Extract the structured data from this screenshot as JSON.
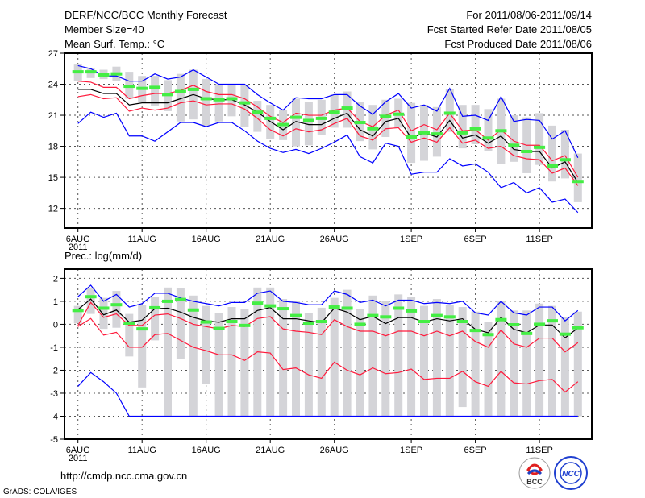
{
  "header": {
    "title": "DERF/NCC/BCC Monthly Forecast",
    "member_size": "Member Size=40",
    "variable": "Mean Surf. Temp.: °C",
    "period": "For 2011/08/06-2011/09/14",
    "start_date": "Fcst Started Refer Date 2011/08/05",
    "produced_date": "Fcst Produced Date 2011/08/06"
  },
  "footer": {
    "url": "http://cmdp.ncc.cma.gov.cn",
    "credit": "GrADS: COLA/IGES",
    "logo_bcc": "BCC",
    "logo_ncc": "NCC"
  },
  "colors": {
    "max_min": "#0000ff",
    "spread": "#ff1a3c",
    "mean": "#000000",
    "obs": "#44ee44",
    "box": "#d4d4d8"
  },
  "chart_data": [
    {
      "type": "line",
      "title": "Mean Surf. Temp.: °C",
      "ylim": [
        10.1,
        27
      ],
      "yticks": [
        12,
        15,
        18,
        21,
        24,
        27
      ],
      "xtick_days": [
        0,
        5,
        10,
        15,
        20,
        26,
        31,
        36
      ],
      "xtick_labels": [
        "6AUG",
        "11AUG",
        "16AUG",
        "21AUG",
        "26AUG",
        "1SEP",
        "6SEP",
        "11SEP"
      ],
      "year_label": "2011",
      "n_days": 40,
      "grid": true,
      "series": [
        {
          "name": "max",
          "color": "#0000ff",
          "values": [
            25.8,
            25.5,
            24.8,
            24.8,
            24.3,
            24.3,
            25.0,
            24.5,
            24.7,
            25.4,
            24.7,
            24.0,
            24.0,
            24.0,
            23.0,
            22.2,
            21.5,
            22.7,
            22.6,
            22.6,
            23.0,
            23.0,
            21.9,
            21.1,
            22.3,
            23.1,
            21.7,
            22.0,
            21.4,
            23.6,
            20.9,
            21.0,
            20.5,
            22.8,
            20.4,
            20.6,
            20.5,
            18.7,
            19.5,
            16.9
          ]
        },
        {
          "name": "upper",
          "color": "#ff1a3c",
          "values": [
            24.3,
            24.2,
            23.7,
            23.7,
            22.6,
            22.9,
            23.1,
            23.1,
            23.4,
            23.9,
            23.3,
            23.0,
            23.0,
            22.6,
            21.8,
            20.9,
            20.3,
            21.2,
            21.0,
            21.0,
            21.5,
            21.7,
            20.4,
            19.9,
            21.0,
            21.5,
            19.5,
            20.1,
            19.6,
            21.2,
            19.5,
            19.6,
            18.6,
            19.6,
            18.5,
            18.1,
            18.1,
            16.6,
            17.1,
            15.0
          ]
        },
        {
          "name": "mean",
          "color": "#000000",
          "values": [
            23.5,
            23.5,
            23.1,
            23.1,
            22.0,
            22.2,
            22.2,
            22.2,
            22.6,
            23.0,
            22.6,
            22.5,
            22.5,
            22.0,
            21.3,
            20.4,
            19.6,
            20.4,
            20.1,
            20.1,
            20.7,
            21.2,
            19.6,
            19.0,
            20.4,
            20.7,
            18.8,
            19.3,
            18.9,
            20.5,
            18.8,
            19.1,
            18.3,
            19.0,
            17.7,
            17.5,
            17.5,
            15.9,
            16.5,
            14.5
          ]
        },
        {
          "name": "lower",
          "color": "#ff1a3c",
          "values": [
            22.8,
            23.0,
            22.6,
            22.7,
            21.4,
            21.7,
            21.5,
            21.7,
            22.2,
            22.4,
            22.0,
            22.1,
            22.1,
            21.6,
            20.7,
            19.6,
            19.0,
            19.7,
            19.4,
            19.6,
            20.2,
            20.7,
            19.0,
            18.6,
            19.7,
            19.8,
            18.4,
            18.8,
            18.4,
            19.8,
            18.3,
            18.6,
            17.8,
            18.0,
            17.1,
            16.8,
            16.7,
            15.4,
            15.9,
            14.2
          ]
        },
        {
          "name": "min",
          "color": "#0000ff",
          "values": [
            20.2,
            21.3,
            20.8,
            21.2,
            19.0,
            19.0,
            18.5,
            19.4,
            20.3,
            20.3,
            19.9,
            20.3,
            20.3,
            19.5,
            18.5,
            17.8,
            17.4,
            17.7,
            17.3,
            17.8,
            18.4,
            19.1,
            17.0,
            16.4,
            18.3,
            18.0,
            15.3,
            15.5,
            15.5,
            16.8,
            16.1,
            16.3,
            15.5,
            14.0,
            14.5,
            13.5,
            14.0,
            12.6,
            12.9,
            11.6
          ]
        }
      ],
      "observed": [
        25.2,
        25.2,
        24.9,
        25.0,
        23.8,
        23.6,
        23.7,
        23.0,
        23.3,
        23.5,
        22.6,
        22.5,
        22.6,
        22.2,
        21.3,
        20.7,
        20.1,
        20.8,
        20.5,
        20.7,
        21.3,
        21.7,
        20.3,
        19.7,
        20.9,
        21.1,
        18.9,
        19.3,
        19.2,
        21.2,
        19.3,
        19.7,
        18.8,
        19.5,
        18.1,
        17.5,
        17.9,
        16.1,
        16.7,
        14.6
      ],
      "box_high": [
        25.9,
        25.6,
        25.4,
        25.7,
        25.2,
        24.8,
        24.8,
        24.4,
        25.0,
        25.4,
        24.5,
        24.0,
        24.0,
        23.9,
        22.4,
        22.0,
        21.5,
        22.6,
        22.3,
        22.5,
        23.0,
        23.3,
        22.3,
        22.0,
        22.5,
        22.6,
        22.2,
        22.0,
        21.8,
        23.5,
        22.0,
        22.0,
        21.6,
        22.6,
        21.0,
        20.8,
        21.2,
        20.0,
        19.6,
        17.3
      ],
      "box_low": [
        24.3,
        24.6,
        24.5,
        24.3,
        22.6,
        22.3,
        21.9,
        21.4,
        20.4,
        20.6,
        20.0,
        20.4,
        20.9,
        19.9,
        19.4,
        18.7,
        18.6,
        18.0,
        18.1,
        19.1,
        19.8,
        19.8,
        18.5,
        17.7,
        18.9,
        19.8,
        16.4,
        16.6,
        17.0,
        19.4,
        17.8,
        18.2,
        17.5,
        16.3,
        16.5,
        15.4,
        16.2,
        14.6,
        14.9,
        12.6
      ]
    },
    {
      "type": "line",
      "title": "Prec.: log(mm/d)",
      "ylim": [
        -5,
        2.4
      ],
      "yticks": [
        -5,
        -4,
        -3,
        -2,
        -1,
        0,
        1,
        2
      ],
      "xtick_days": [
        0,
        5,
        10,
        15,
        20,
        26,
        31,
        36
      ],
      "xtick_labels": [
        "6AUG",
        "11AUG",
        "16AUG",
        "21AUG",
        "26AUG",
        "1SEP",
        "6SEP",
        "11SEP"
      ],
      "year_label": "2011",
      "n_days": 40,
      "grid": true,
      "series": [
        {
          "name": "max",
          "color": "#0000ff",
          "values": [
            1.2,
            1.7,
            1.0,
            1.3,
            0.75,
            0.9,
            1.35,
            1.35,
            1.15,
            1.0,
            0.9,
            0.8,
            0.95,
            0.95,
            1.35,
            1.45,
            1.0,
            0.95,
            0.85,
            0.85,
            1.45,
            1.3,
            0.95,
            1.05,
            0.8,
            1.05,
            1.05,
            0.9,
            0.95,
            0.9,
            1.0,
            0.5,
            0.4,
            1.0,
            0.5,
            0.4,
            0.75,
            0.75,
            0.15,
            0.6
          ]
        },
        {
          "name": "upper",
          "color": "#ff1a3c",
          "values": [
            -0.05,
            0.95,
            0.3,
            0.45,
            -0.05,
            -0.05,
            0.4,
            0.45,
            0.25,
            0.0,
            -0.1,
            -0.2,
            -0.05,
            -0.1,
            0.25,
            0.33,
            -0.2,
            -0.3,
            -0.35,
            -0.45,
            0.2,
            -0.1,
            -0.3,
            -0.3,
            -0.5,
            -0.3,
            -0.3,
            -0.5,
            -0.3,
            -0.5,
            -0.3,
            -0.75,
            -1.0,
            -0.25,
            -0.85,
            -1.0,
            -0.6,
            -0.6,
            -1.2,
            -0.8
          ]
        },
        {
          "name": "mean",
          "color": "#000000",
          "values": [
            0.64,
            1.1,
            0.41,
            0.62,
            0.09,
            0.18,
            0.68,
            0.7,
            0.53,
            0.3,
            0.15,
            0.09,
            0.24,
            0.24,
            0.6,
            0.73,
            0.24,
            0.24,
            0.15,
            0.07,
            0.7,
            0.53,
            0.2,
            0.35,
            0.03,
            0.29,
            0.29,
            0.1,
            0.24,
            0.15,
            0.24,
            -0.22,
            -0.37,
            0.3,
            -0.22,
            -0.37,
            -0.03,
            -0.03,
            -0.59,
            -0.16
          ]
        },
        {
          "name": "lower",
          "color": "#ff1a3c",
          "values": [
            -0.1,
            0.25,
            -0.47,
            -0.35,
            -1.0,
            -1.0,
            -0.45,
            -0.4,
            -0.7,
            -1.0,
            -1.15,
            -1.33,
            -1.33,
            -1.57,
            -1.2,
            -1.25,
            -1.97,
            -1.9,
            -2.2,
            -2.35,
            -1.65,
            -2.0,
            -2.2,
            -1.9,
            -2.15,
            -2.1,
            -1.95,
            -2.4,
            -2.35,
            -2.35,
            -2.05,
            -2.5,
            -2.7,
            -2.05,
            -2.55,
            -2.6,
            -2.45,
            -2.4,
            -2.95,
            -2.5
          ]
        },
        {
          "name": "min",
          "color": "#0000ff",
          "values": [
            -2.7,
            -2.1,
            -2.5,
            -3.0,
            -4,
            -4,
            -4,
            -4,
            -4,
            -4,
            -4,
            -4,
            -4,
            -4,
            -4,
            -4,
            -4,
            -4,
            -4,
            -4,
            -4,
            -4,
            -4,
            -4,
            -4,
            -4,
            -4,
            -4,
            -4,
            -4,
            -4,
            -4,
            -4,
            -4,
            -4,
            -4,
            -4,
            -4,
            -4,
            -4
          ]
        }
      ],
      "observed": [
        0.6,
        1.2,
        0.7,
        0.85,
        0.05,
        -0.2,
        0.72,
        1.0,
        1.08,
        0.62,
        0.1,
        -0.18,
        0.12,
        -0.05,
        0.92,
        0.8,
        0.68,
        0.38,
        0.05,
        0.12,
        0.75,
        0.7,
        0.0,
        0.38,
        0.32,
        0.7,
        0.58,
        0.12,
        0.38,
        0.32,
        0.12,
        -0.27,
        -0.45,
        0.2,
        -0.02,
        -0.4,
        0.0,
        0.15,
        -0.43,
        -0.15
      ],
      "box_high": [
        0.8,
        1.6,
        1.15,
        1.45,
        0.45,
        0.85,
        1.2,
        1.6,
        1.58,
        1.25,
        0.8,
        0.5,
        0.75,
        0.65,
        1.6,
        1.6,
        1.1,
        1.0,
        0.48,
        0.72,
        1.15,
        1.5,
        0.65,
        1.25,
        1.0,
        1.3,
        1.2,
        0.8,
        1.1,
        0.85,
        0.75,
        0.55,
        0.1,
        1.0,
        0.6,
        0.6,
        0.9,
        0.8,
        0.3,
        0.55
      ],
      "box_low": [
        0.05,
        0.45,
        -0.2,
        -0.15,
        -1.4,
        -2.75,
        -0.7,
        -4,
        -1.5,
        -4,
        -2.6,
        -4,
        -4,
        -4,
        -4,
        -4,
        -4,
        -4,
        -4,
        -4,
        -4,
        -4,
        -4,
        -4,
        -4,
        -4,
        -4,
        -4,
        -4,
        -4,
        -3.6,
        -4,
        -4,
        -4,
        -4,
        -4,
        -4,
        -4,
        -4,
        -4
      ]
    }
  ]
}
